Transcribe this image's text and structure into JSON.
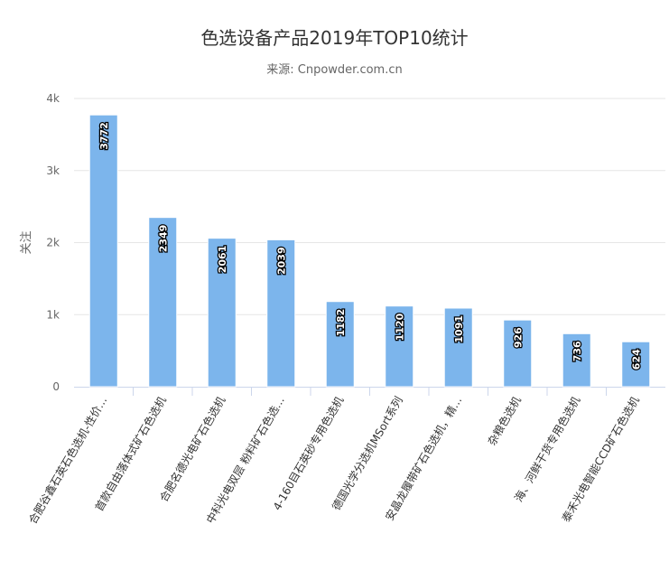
{
  "chart_data": {
    "type": "bar",
    "title": "色选设备产品2019年TOP10统计",
    "subtitle": "来源: Cnpowder.com.cn",
    "ylabel": "关注",
    "xlabel": "",
    "ylim": [
      0,
      4000
    ],
    "yticks": [
      0,
      1000,
      2000,
      3000,
      4000
    ],
    "ytick_labels": [
      "0",
      "1k",
      "2k",
      "3k",
      "4k"
    ],
    "grid": true,
    "categories": [
      "合肥谷鑫石英石色选机-性价…",
      "首款自由落体式矿石色选机",
      "合肥名德光电矿石色选机",
      "中科光电双层 粉料矿石色选…",
      "4-160目石英砂专用色选机",
      "德国光学分选机MSort系列",
      "安晶龙履带矿石色选机，精…",
      "杂粮色选机",
      "海、河鲜干货专用色选机",
      "泰禾光电智能CCD矿石色选机"
    ],
    "values": [
      3772,
      2349,
      2061,
      2039,
      1182,
      1120,
      1091,
      926,
      736,
      624
    ],
    "colors": {
      "bar": "#7cb5ec",
      "grid": "#e6e6e6",
      "axis": "#ccd6eb"
    }
  }
}
